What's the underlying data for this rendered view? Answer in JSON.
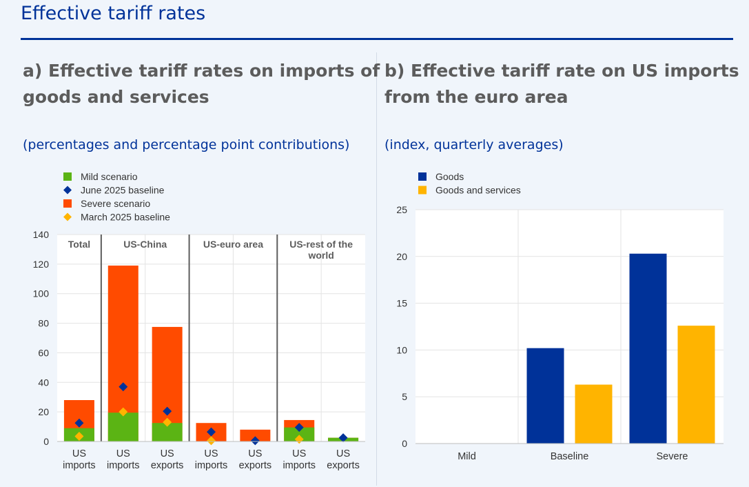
{
  "main_title": "Effective tariff rates",
  "panel_a": {
    "title_line1": "a) Effective tariff rates on imports of",
    "title_line2": "goods and services",
    "subtitle": "(percentages and percentage point contributions)"
  },
  "panel_b": {
    "title_line1": "b) Effective tariff rate on US imports",
    "title_line2": "from the euro area",
    "subtitle": "(index, quarterly averages)"
  },
  "chart_data": [
    {
      "type": "bar",
      "stacked": true,
      "legend": [
        {
          "label": "Mild scenario",
          "marker": "square",
          "color": "#5bb414"
        },
        {
          "label": "June 2025 baseline",
          "marker": "diamond",
          "color": "#003299"
        },
        {
          "label": "Severe scenario",
          "marker": "square",
          "color": "#ff4b00"
        },
        {
          "label": "March 2025 baseline",
          "marker": "diamond",
          "color": "#ffb400"
        }
      ],
      "groups": [
        {
          "label": "Total",
          "span": 1
        },
        {
          "label": "US-China",
          "span": 2
        },
        {
          "label": "US-euro area",
          "span": 2
        },
        {
          "label": "US-rest of the world",
          "label_line1": "US-rest of the",
          "label_line2": "world",
          "span": 2
        }
      ],
      "categories": [
        {
          "line1": "US",
          "line2": "imports"
        },
        {
          "line1": "US",
          "line2": "imports"
        },
        {
          "line1": "US",
          "line2": "exports"
        },
        {
          "line1": "US",
          "line2": "imports"
        },
        {
          "line1": "US",
          "line2": "exports"
        },
        {
          "line1": "US",
          "line2": "imports"
        },
        {
          "line1": "US",
          "line2": "exports"
        }
      ],
      "series": [
        {
          "name": "Mild scenario",
          "kind": "bar",
          "color": "#5bb414",
          "values": [
            9,
            19.5,
            12.5,
            0,
            0,
            9.5,
            2.5
          ]
        },
        {
          "name": "Severe scenario",
          "kind": "bar",
          "color": "#ff4b00",
          "values": [
            28,
            119,
            77.5,
            12.5,
            8,
            14.5,
            2.5
          ]
        },
        {
          "name": "June 2025 baseline",
          "kind": "diamond",
          "color": "#003299",
          "values": [
            12.5,
            37,
            20.5,
            6.5,
            0.5,
            9.5,
            2.5
          ]
        },
        {
          "name": "March 2025 baseline",
          "kind": "diamond",
          "color": "#ffb400",
          "values": [
            3.5,
            20,
            13,
            0.5,
            null,
            1.5,
            null
          ]
        }
      ],
      "y_ticks": [
        0,
        20,
        40,
        60,
        80,
        100,
        120,
        140
      ],
      "ylim": [
        0,
        140
      ]
    },
    {
      "type": "bar",
      "legend": [
        {
          "label": "Goods",
          "color": "#003299"
        },
        {
          "label": "Goods and services",
          "color": "#ffb400"
        }
      ],
      "categories": [
        "Mild",
        "Baseline",
        "Severe"
      ],
      "series": [
        {
          "name": "Goods",
          "color": "#003299",
          "values": [
            0,
            10.2,
            20.3
          ]
        },
        {
          "name": "Goods and services",
          "color": "#ffb400",
          "values": [
            0,
            6.3,
            12.6
          ]
        }
      ],
      "y_ticks": [
        0,
        5,
        10,
        15,
        20,
        25
      ],
      "ylim": [
        0,
        25
      ]
    }
  ]
}
